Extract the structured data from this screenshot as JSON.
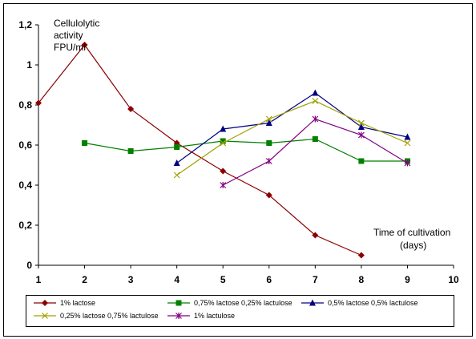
{
  "chart_data": {
    "type": "line",
    "ylabel": [
      "Cellulolytic",
      "activity",
      "FPU/ml"
    ],
    "xlabel": [
      "Time of cultivation",
      "(days)"
    ],
    "xlim": [
      1,
      10
    ],
    "ylim": [
      0,
      1.2
    ],
    "x_ticks": [
      "1",
      "2",
      "3",
      "4",
      "5",
      "6",
      "7",
      "8",
      "9",
      "10"
    ],
    "y_ticks": [
      "0",
      "0,2",
      "0,4",
      "0,6",
      "0,8",
      "1",
      "1,2"
    ],
    "grid": false,
    "legend_position": "bottom",
    "series": [
      {
        "name": "1% lactose",
        "color": "#8b0000",
        "marker": "diamond",
        "x": [
          1,
          2,
          3,
          4,
          5,
          6,
          7,
          8
        ],
        "values": [
          0.81,
          1.1,
          0.78,
          0.61,
          0.47,
          0.35,
          0.15,
          0.05
        ]
      },
      {
        "name": "0,75% lactose 0,25% lactulose",
        "color": "#008000",
        "marker": "square",
        "x": [
          2,
          3,
          4,
          5,
          6,
          7,
          8,
          9
        ],
        "values": [
          0.61,
          0.57,
          0.59,
          0.62,
          0.61,
          0.63,
          0.52,
          0.52
        ]
      },
      {
        "name": "0,5% lactose 0,5% lactulose",
        "color": "#000080",
        "marker": "triangle",
        "x": [
          4,
          5,
          6,
          7,
          8,
          9
        ],
        "values": [
          0.51,
          0.68,
          0.71,
          0.86,
          0.69,
          0.64
        ]
      },
      {
        "name": "0,25% lactose 0,75% lactulose",
        "color": "#a0a000",
        "marker": "x",
        "x": [
          4,
          5,
          6,
          7,
          8,
          9
        ],
        "values": [
          0.45,
          0.61,
          0.73,
          0.82,
          0.71,
          0.61
        ]
      },
      {
        "name": "1% lactulose",
        "color": "#800080",
        "marker": "star",
        "x": [
          5,
          6,
          7,
          8,
          9
        ],
        "values": [
          0.4,
          0.52,
          0.73,
          0.65,
          0.51
        ]
      }
    ]
  }
}
